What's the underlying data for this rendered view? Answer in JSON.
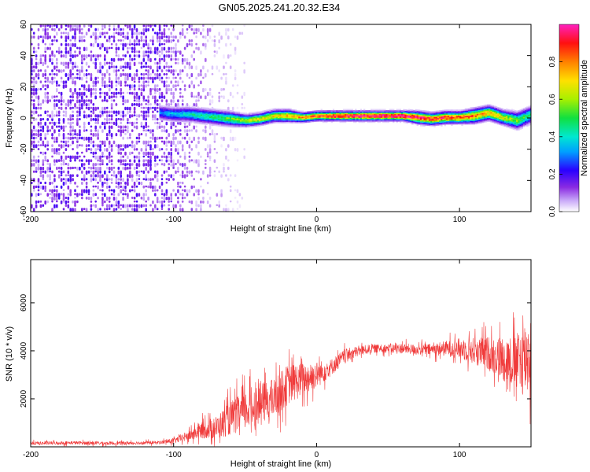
{
  "title": "GN05.2025.241.20.32.E34",
  "chart_data": [
    {
      "type": "heatmap",
      "title": "GN05.2025.241.20.32.E34",
      "xlabel": "Height of straight line (km)",
      "ylabel": "Frequency (Hz)",
      "xlim": [
        -200,
        150
      ],
      "ylim": [
        -60,
        60
      ],
      "xticks": [
        -200,
        -100,
        0,
        100
      ],
      "yticks": [
        -60,
        -40,
        -20,
        0,
        20,
        40,
        60
      ],
      "colorbar": {
        "label": "Normalized spectral amplitude",
        "range": [
          0,
          1
        ],
        "ticks": [
          0.0,
          0.2,
          0.4,
          0.6,
          0.8
        ]
      },
      "noise_region_x": [
        -200,
        -70
      ],
      "ridge": {
        "x": [
          -110,
          -100,
          -90,
          -80,
          -70,
          -60,
          -50,
          -40,
          -30,
          -20,
          -10,
          0,
          10,
          20,
          30,
          40,
          50,
          60,
          70,
          80,
          90,
          100,
          110,
          120,
          130,
          140,
          150
        ],
        "frequency": [
          3,
          2,
          2,
          1,
          0,
          -1,
          -2,
          -1,
          1,
          1,
          0,
          1,
          1,
          1,
          1,
          1,
          1,
          1,
          0,
          -1,
          0,
          0,
          1,
          3,
          0,
          -2,
          2
        ],
        "width": [
          6,
          6,
          6,
          6,
          6,
          6,
          5,
          5,
          5,
          5,
          4,
          4,
          4,
          4,
          4,
          4,
          4,
          4,
          5,
          5,
          5,
          5,
          6,
          6,
          6,
          7,
          7
        ],
        "amplitude": [
          0.3,
          0.35,
          0.4,
          0.45,
          0.5,
          0.55,
          0.6,
          0.65,
          0.7,
          0.75,
          0.8,
          0.85,
          0.9,
          0.95,
          0.98,
          1.0,
          1.0,
          1.0,
          0.95,
          0.9,
          0.9,
          0.85,
          0.8,
          0.75,
          0.65,
          0.55,
          0.45
        ]
      }
    },
    {
      "type": "line",
      "xlabel": "Height of straight line (km)",
      "ylabel": "SNR (10 * v/v)",
      "xlim": [
        -200,
        150
      ],
      "ylim": [
        0,
        7800
      ],
      "xticks": [
        -200,
        -100,
        0,
        100
      ],
      "yticks": [
        2000,
        4000,
        6000
      ],
      "color": "#f03a3a",
      "series": [
        {
          "x": [
            -200,
            -190,
            -180,
            -170,
            -160,
            -150,
            -140,
            -130,
            -120,
            -110,
            -100,
            -90,
            -80,
            -70,
            -60,
            -50,
            -40,
            -30,
            -20,
            -10,
            0,
            10,
            20,
            30,
            40,
            50,
            60,
            70,
            80,
            90,
            100,
            110,
            120,
            130,
            140,
            145,
            150
          ],
          "values": [
            150,
            150,
            160,
            170,
            160,
            150,
            150,
            160,
            170,
            180,
            250,
            450,
            700,
            800,
            1200,
            1500,
            1800,
            2000,
            2600,
            2800,
            3000,
            3300,
            3800,
            4000,
            4100,
            4100,
            4100,
            4050,
            4050,
            4100,
            4100,
            4000,
            3900,
            3700,
            3500,
            3700,
            3900
          ],
          "spread": [
            100,
            100,
            100,
            100,
            100,
            100,
            100,
            100,
            100,
            100,
            150,
            300,
            500,
            700,
            1000,
            1200,
            1200,
            1200,
            1200,
            1000,
            800,
            500,
            400,
            300,
            250,
            250,
            300,
            300,
            350,
            450,
            600,
            800,
            1000,
            1300,
            1700,
            2300,
            2500
          ]
        }
      ]
    }
  ]
}
